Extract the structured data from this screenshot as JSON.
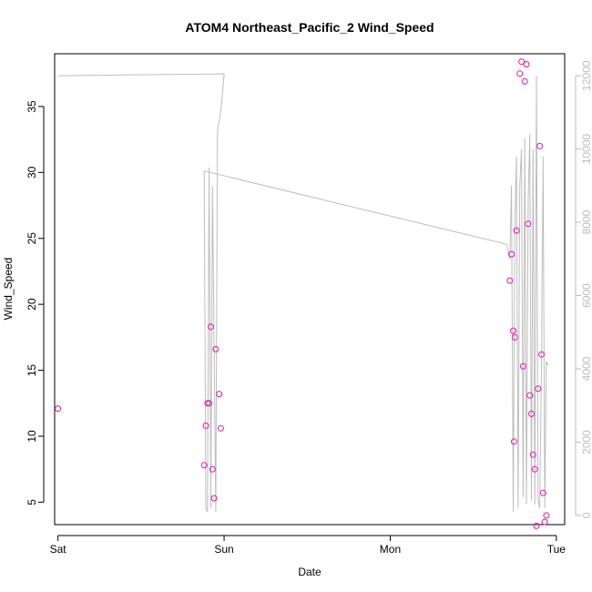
{
  "chart_data": {
    "type": "scatter",
    "title": "ATOM4 Northeast_Pacific_2 Wind_Speed",
    "xlabel": "Date",
    "ylabel": "Wind_Speed",
    "x_tick_labels": [
      "Sat",
      "Sun",
      "Mon",
      "Tue"
    ],
    "y_ticks": [
      5,
      10,
      15,
      20,
      25,
      30,
      35
    ],
    "y_right_ticks": [
      0,
      2000,
      4000,
      6000,
      8000,
      10000,
      12000
    ],
    "xlim_days": [
      -0.02,
      3.05
    ],
    "ylim": [
      3.3,
      39.0
    ],
    "y_right_lim": [
      -250,
      12600
    ],
    "colors": {
      "points": "#e6199f",
      "line": "#bdbdbd",
      "axis": "#000000",
      "right_axis": "#bdbdbd"
    },
    "series": [
      {
        "type": "scatter",
        "x": [
          0.0,
          0.88,
          0.89,
          0.9,
          0.91,
          0.92,
          0.93,
          0.94,
          0.95,
          0.97,
          0.98,
          2.72,
          2.73,
          2.74,
          2.745,
          2.75,
          2.76,
          2.78,
          2.79,
          2.8,
          2.81,
          2.82,
          2.83,
          2.84,
          2.85,
          2.86,
          2.87,
          2.88,
          2.89,
          2.9,
          2.91,
          2.92,
          2.93,
          2.94
        ],
        "y": [
          12.1,
          7.8,
          10.8,
          12.5,
          12.5,
          18.3,
          7.5,
          5.3,
          16.6,
          13.2,
          10.6,
          21.8,
          23.8,
          18.0,
          9.6,
          17.5,
          25.6,
          37.5,
          38.4,
          15.3,
          36.9,
          38.2,
          26.1,
          13.1,
          11.7,
          8.6,
          7.5,
          3.2,
          13.6,
          32.0,
          16.2,
          5.7,
          3.5,
          4.0
        ]
      },
      {
        "type": "line",
        "axis": "right",
        "x": [
          0.0,
          1.0,
          0.98,
          0.96,
          0.95,
          0.93,
          0.92,
          0.91,
          0.9,
          0.89,
          0.88,
          2.7,
          2.72,
          2.73,
          2.74,
          2.75,
          2.76,
          2.77,
          2.78,
          2.79,
          2.8,
          2.81,
          2.82,
          2.83,
          2.84,
          2.85,
          2.86,
          2.87,
          2.88,
          2.89,
          2.9,
          2.91,
          2.92,
          2.93,
          2.94,
          2.95
        ],
        "y": [
          12000,
          12050,
          11000,
          10500,
          100,
          9000,
          200,
          9500,
          100,
          200,
          9400,
          7400,
          7000,
          9000,
          100,
          8000,
          9800,
          200,
          9000,
          10000,
          500,
          10300,
          300,
          8500,
          10400,
          400,
          10000,
          300,
          12000,
          400,
          200,
          4000,
          9800,
          200,
          4200,
          4100
        ]
      }
    ]
  }
}
